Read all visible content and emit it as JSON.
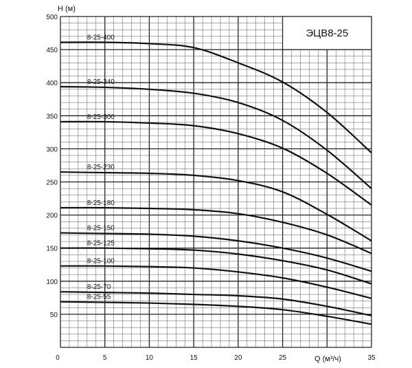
{
  "chart_data": {
    "type": "line",
    "title": "ЭЦВ8-25",
    "xlabel": "Q (м³/ч)",
    "ylabel": "H (м)",
    "xlim": [
      0,
      35
    ],
    "ylim": [
      0,
      500
    ],
    "x_ticks": [
      "0",
      "5",
      "10",
      "15",
      "20",
      "25",
      "35"
    ],
    "y_ticks": [
      "50",
      "100",
      "150",
      "200",
      "250",
      "300",
      "350",
      "400",
      "450",
      "500"
    ],
    "grid": true,
    "x": [
      0,
      5,
      10,
      15,
      20,
      25,
      30,
      35
    ],
    "series": [
      {
        "name": "8-25-400",
        "values": [
          461,
          461,
          459,
          453,
          430,
          401,
          355,
          294
        ]
      },
      {
        "name": "8-25-340",
        "values": [
          394,
          393,
          390,
          384,
          370,
          343,
          298,
          240
        ]
      },
      {
        "name": "8-25-300",
        "values": [
          341,
          341,
          339,
          335,
          323,
          301,
          263,
          215
        ]
      },
      {
        "name": "8-25-230",
        "values": [
          265,
          264,
          263,
          260,
          252,
          235,
          201,
          161
        ]
      },
      {
        "name": "8-25-180",
        "values": [
          211,
          211,
          210,
          208,
          202,
          189,
          170,
          142
        ]
      },
      {
        "name": "8-25-150",
        "values": [
          173,
          172,
          171,
          168,
          161,
          150,
          135,
          115
        ]
      },
      {
        "name": "8-25-125",
        "values": [
          150,
          150,
          149,
          147,
          141,
          131,
          117,
          96
        ]
      },
      {
        "name": "8-25-100",
        "values": [
          123,
          123,
          122,
          120,
          114,
          105,
          91,
          74
        ]
      },
      {
        "name": "8-25-70",
        "values": [
          84,
          83,
          82,
          80,
          78,
          73,
          62,
          48
        ]
      },
      {
        "name": "8-25-55",
        "values": [
          69,
          68,
          67,
          65,
          62,
          57,
          47,
          35
        ]
      }
    ]
  }
}
